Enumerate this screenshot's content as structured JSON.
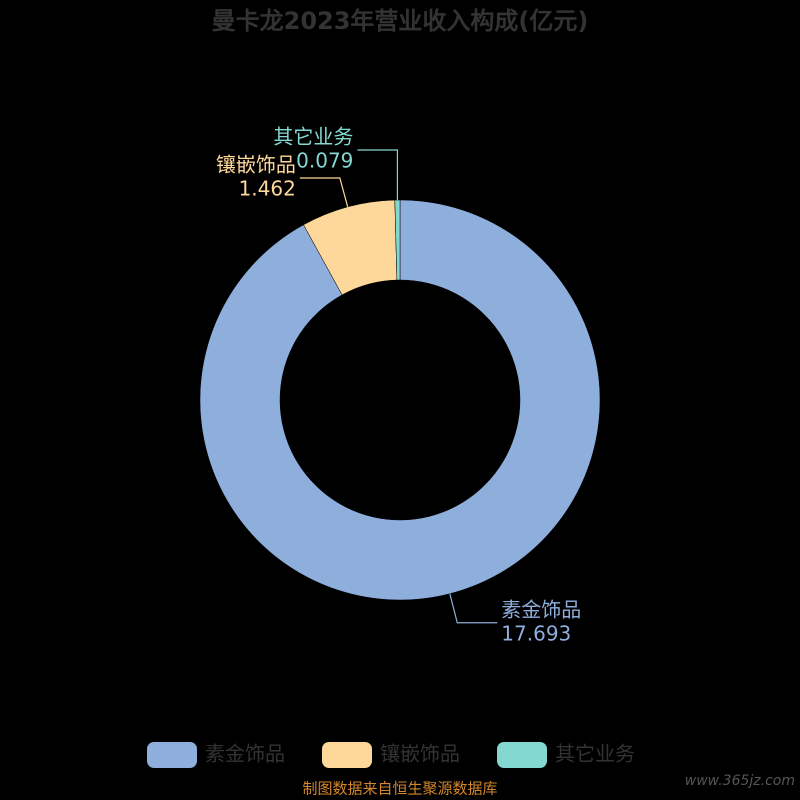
{
  "chart_data": {
    "type": "donut",
    "title": "曼卡龙2023年营业收入构成(亿元)",
    "categories": [
      "素金饰品",
      "镶嵌饰品",
      "其它业务"
    ],
    "values": [
      17.693,
      1.462,
      0.079
    ],
    "colors": [
      "#8eaedc",
      "#fdd89a",
      "#84d8d2"
    ],
    "source": "制图数据来自恒生聚源数据库",
    "watermark": "www.365jz.com"
  }
}
